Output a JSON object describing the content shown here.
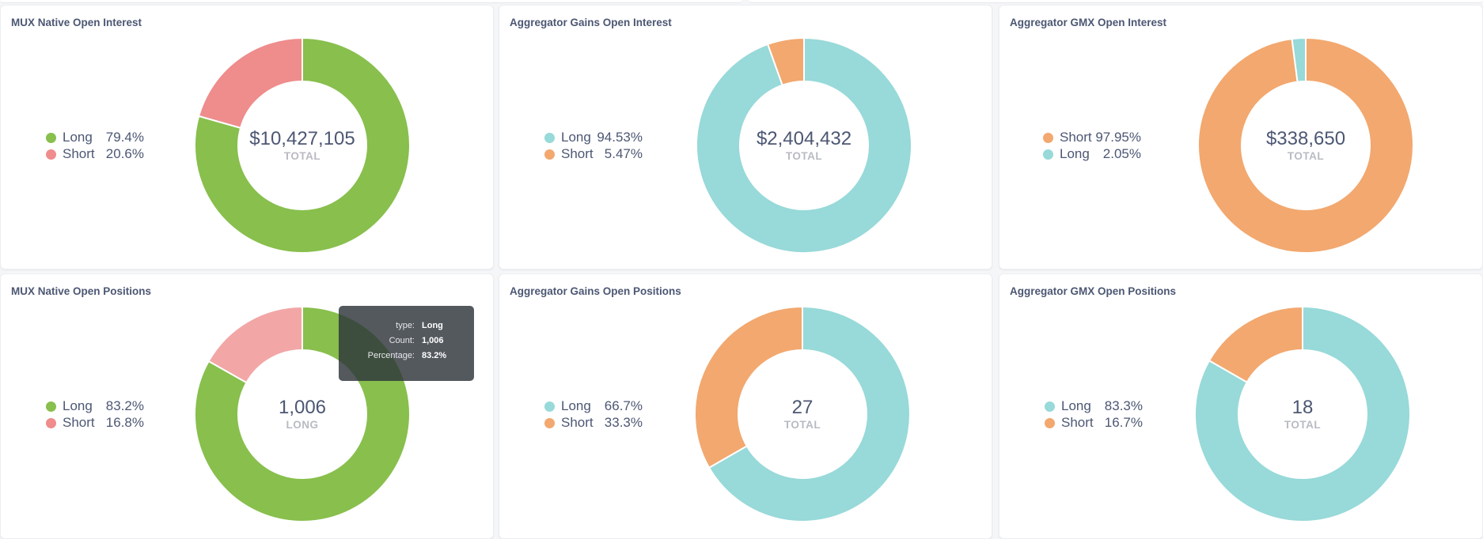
{
  "colors": {
    "green": "#88bf4d",
    "red": "#ef8c8c",
    "red_light": "#f2a6a6",
    "teal": "#98d9d9",
    "orange": "#f2a86f"
  },
  "cards": [
    {
      "title": "MUX Native Open Interest",
      "center_value": "$10,427,105",
      "center_label": "TOTAL",
      "legend": [
        {
          "label": "Long",
          "pct": "79.4%",
          "color": "#88bf4d"
        },
        {
          "label": "Short",
          "pct": "20.6%",
          "color": "#ef8c8c"
        }
      ]
    },
    {
      "title": "Aggregator Gains Open Interest",
      "center_value": "$2,404,432",
      "center_label": "TOTAL",
      "legend": [
        {
          "label": "Long",
          "pct": "94.53%",
          "color": "#98d9d9"
        },
        {
          "label": "Short",
          "pct": "5.47%",
          "color": "#f2a86f"
        }
      ]
    },
    {
      "title": "Aggregator GMX Open Interest",
      "center_value": "$338,650",
      "center_label": "TOTAL",
      "legend": [
        {
          "label": "Short",
          "pct": "97.95%",
          "color": "#f2a86f"
        },
        {
          "label": "Long",
          "pct": "2.05%",
          "color": "#98d9d9"
        }
      ]
    },
    {
      "title": "MUX Native Open Positions",
      "center_value": "1,006",
      "center_label": "LONG",
      "legend": [
        {
          "label": "Long",
          "pct": "83.2%",
          "color": "#88bf4d"
        },
        {
          "label": "Short",
          "pct": "16.8%",
          "color": "#ef8c8c"
        }
      ]
    },
    {
      "title": "Aggregator Gains Open Positions",
      "center_value": "27",
      "center_label": "TOTAL",
      "legend": [
        {
          "label": "Long",
          "pct": "66.7%",
          "color": "#98d9d9"
        },
        {
          "label": "Short",
          "pct": "33.3%",
          "color": "#f2a86f"
        }
      ]
    },
    {
      "title": "Aggregator GMX Open Positions",
      "center_value": "18",
      "center_label": "TOTAL",
      "legend": [
        {
          "label": "Long",
          "pct": "83.3%",
          "color": "#98d9d9"
        },
        {
          "label": "Short",
          "pct": "16.7%",
          "color": "#f2a86f"
        }
      ]
    }
  ],
  "tooltip": {
    "rows": [
      {
        "key": "type:",
        "value": "Long"
      },
      {
        "key": "Count:",
        "value": "1,006"
      },
      {
        "key": "Percentage:",
        "value": "83.2%"
      }
    ]
  },
  "chart_data": [
    {
      "type": "pie",
      "title": "MUX Native Open Interest",
      "categories": [
        "Long",
        "Short"
      ],
      "values": [
        79.4,
        20.6
      ],
      "colors": [
        "#88bf4d",
        "#ef8c8c"
      ],
      "total": "$10,427,105"
    },
    {
      "type": "pie",
      "title": "Aggregator Gains Open Interest",
      "categories": [
        "Long",
        "Short"
      ],
      "values": [
        94.53,
        5.47
      ],
      "colors": [
        "#98d9d9",
        "#f2a86f"
      ],
      "total": "$2,404,432"
    },
    {
      "type": "pie",
      "title": "Aggregator GMX Open Interest",
      "categories": [
        "Short",
        "Long"
      ],
      "values": [
        97.95,
        2.05
      ],
      "colors": [
        "#f2a86f",
        "#98d9d9"
      ],
      "total": "$338,650"
    },
    {
      "type": "pie",
      "title": "MUX Native Open Positions",
      "categories": [
        "Long",
        "Short"
      ],
      "values": [
        83.2,
        16.8
      ],
      "colors": [
        "#88bf4d",
        "#f2a6a6"
      ],
      "hovered": "Long",
      "counts": [
        1006
      ]
    },
    {
      "type": "pie",
      "title": "Aggregator Gains Open Positions",
      "categories": [
        "Long",
        "Short"
      ],
      "values": [
        66.7,
        33.3
      ],
      "colors": [
        "#98d9d9",
        "#f2a86f"
      ],
      "total": "27"
    },
    {
      "type": "pie",
      "title": "Aggregator GMX Open Positions",
      "categories": [
        "Long",
        "Short"
      ],
      "values": [
        83.3,
        16.7
      ],
      "colors": [
        "#98d9d9",
        "#f2a86f"
      ],
      "total": "18"
    }
  ]
}
